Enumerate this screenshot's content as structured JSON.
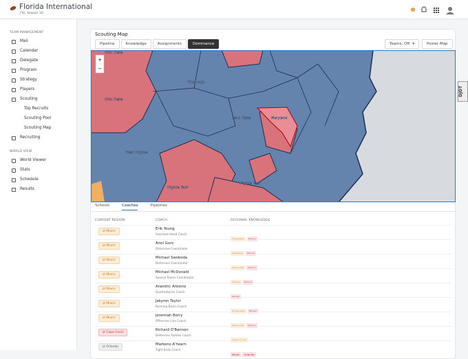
{
  "header": {
    "title": "Florida International",
    "subtitle": "FIU, Season 10"
  },
  "sidebar": {
    "sections": [
      {
        "title": "TEAM MANAGEMENT",
        "items": [
          {
            "label": "Mail"
          },
          {
            "label": "Calendar"
          },
          {
            "label": "Delegate"
          },
          {
            "label": "Program"
          },
          {
            "label": "Strategy"
          },
          {
            "label": "Players"
          },
          {
            "label": "Scouting",
            "children": [
              "Top Recruits",
              "Scouting Pool",
              "Scouting Map"
            ]
          },
          {
            "label": "Recruiting"
          }
        ]
      },
      {
        "title": "WORLD VIEW",
        "items": [
          {
            "label": "World Viewer"
          },
          {
            "label": "Stats"
          },
          {
            "label": "Schedule"
          },
          {
            "label": "Results"
          }
        ]
      }
    ]
  },
  "card": {
    "title": "Scouting Map",
    "tabs": [
      "Pipeline",
      "Knowledge",
      "Assignments",
      "Dominance"
    ],
    "active_tab": "Dominance",
    "select": "Teams: Off",
    "button": "Poster Map"
  },
  "map": {
    "zoom_in": "+",
    "zoom_out": "−",
    "labels": [
      "Ohio State",
      "Ohio State",
      "Pittsburgh",
      "Penn State",
      "Maryland",
      "West Virginia",
      "Virginia Tech",
      "Virginia Tech"
    ]
  },
  "debug_tab": "DJDT",
  "table": {
    "tabs": [
      "Schools",
      "Coaches",
      "Pipelines"
    ],
    "active_tab": "Coaches",
    "headers": [
      "CURRENT REGION",
      "COACH",
      "REGIONAL KNOWLEDGE"
    ],
    "rows": [
      {
        "region": "Miami",
        "name": "Erik Young",
        "role": "Assistant Head Coach",
        "knowledge": [
          "Charlotte",
          "Miami"
        ]
      },
      {
        "region": "Miami",
        "name": "Ariel Gore",
        "role": "Defensive Coordinator",
        "knowledge": [
          "Hartford",
          "Miami"
        ]
      },
      {
        "region": "Miami",
        "name": "Michael Swoboda",
        "role": "Defensive Coordinator",
        "knowledge": [
          "Nashville",
          "Miami"
        ]
      },
      {
        "region": "Miami",
        "name": "Michael McDonald",
        "role": "Special Teams Coordinator",
        "knowledge": [
          "Dallas",
          "Miami"
        ]
      },
      {
        "region": "Miami",
        "name": "Arandric Antoine",
        "role": "Quarterbacks Coach",
        "knowledge": [
          "Miami"
        ]
      },
      {
        "region": "Miami",
        "name": "Jakyron Taylor",
        "role": "Running Backs Coach",
        "knowledge": [
          "Savannah",
          "Miami"
        ]
      },
      {
        "region": "Miami",
        "name": "Jeremiah Berry",
        "role": "Offensive Line Coach",
        "knowledge": [
          "Nashville",
          "Miami"
        ]
      },
      {
        "region": "Cape Coral",
        "name": "Richard O'Bannon",
        "role": "Defensive Tackles Coach",
        "knowledge": [
          "Cape Coral"
        ]
      },
      {
        "region": "Orlando",
        "name": "Markeno A'hearn",
        "role": "Tight Ends Coach",
        "knowledge": [
          "Miami",
          "Orlando"
        ]
      }
    ]
  }
}
